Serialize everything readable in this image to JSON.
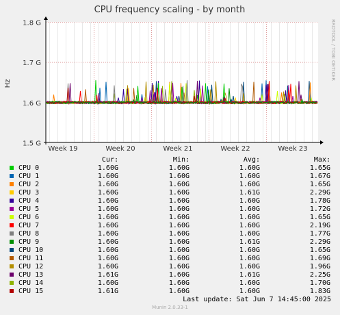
{
  "chart_data": {
    "type": "line",
    "title": "CPU frequency scaling - by month",
    "ylabel": "Hz",
    "watermark": "RRDTOOL / TOBI OETIKER",
    "ylim": [
      1.5,
      1.8
    ],
    "y_ticks": [
      "1.5 G",
      "1.6 G",
      "1.7 G",
      "1.8 G"
    ],
    "y_tick_values": [
      1.5,
      1.6,
      1.7,
      1.8
    ],
    "x_ticks": [
      "Week 19",
      "Week 20",
      "Week 21",
      "Week 22",
      "Week 23"
    ],
    "grid": true,
    "baseline": 1.6,
    "series": [
      {
        "name": "CPU 0",
        "color": "#00cc00",
        "cur": "1.60G",
        "min": "1.60G",
        "avg": "1.60G",
        "max": "1.65G"
      },
      {
        "name": "CPU 1",
        "color": "#0066b3",
        "cur": "1.60G",
        "min": "1.60G",
        "avg": "1.60G",
        "max": "1.67G"
      },
      {
        "name": "CPU 2",
        "color": "#ff8000",
        "cur": "1.60G",
        "min": "1.60G",
        "avg": "1.60G",
        "max": "1.65G"
      },
      {
        "name": "CPU 3",
        "color": "#ffcc00",
        "cur": "1.60G",
        "min": "1.60G",
        "avg": "1.61G",
        "max": "2.29G"
      },
      {
        "name": "CPU 4",
        "color": "#330099",
        "cur": "1.60G",
        "min": "1.60G",
        "avg": "1.60G",
        "max": "1.78G"
      },
      {
        "name": "CPU 5",
        "color": "#990099",
        "cur": "1.60G",
        "min": "1.60G",
        "avg": "1.60G",
        "max": "1.72G"
      },
      {
        "name": "CPU 6",
        "color": "#ccff00",
        "cur": "1.60G",
        "min": "1.60G",
        "avg": "1.60G",
        "max": "1.65G"
      },
      {
        "name": "CPU 7",
        "color": "#ff0000",
        "cur": "1.60G",
        "min": "1.60G",
        "avg": "1.60G",
        "max": "2.19G"
      },
      {
        "name": "CPU 8",
        "color": "#808080",
        "cur": "1.60G",
        "min": "1.60G",
        "avg": "1.60G",
        "max": "1.77G"
      },
      {
        "name": "CPU 9",
        "color": "#008f00",
        "cur": "1.60G",
        "min": "1.60G",
        "avg": "1.61G",
        "max": "2.29G"
      },
      {
        "name": "CPU 10",
        "color": "#00487d",
        "cur": "1.60G",
        "min": "1.60G",
        "avg": "1.60G",
        "max": "1.65G"
      },
      {
        "name": "CPU 11",
        "color": "#b35a00",
        "cur": "1.60G",
        "min": "1.60G",
        "avg": "1.60G",
        "max": "1.69G"
      },
      {
        "name": "CPU 12",
        "color": "#b38f00",
        "cur": "1.60G",
        "min": "1.60G",
        "avg": "1.60G",
        "max": "1.96G"
      },
      {
        "name": "CPU 13",
        "color": "#6b006b",
        "cur": "1.61G",
        "min": "1.60G",
        "avg": "1.61G",
        "max": "2.25G"
      },
      {
        "name": "CPU 14",
        "color": "#8fb300",
        "cur": "1.60G",
        "min": "1.60G",
        "avg": "1.60G",
        "max": "1.70G"
      },
      {
        "name": "CPU 15",
        "color": "#b30000",
        "cur": "1.61G",
        "min": "1.60G",
        "avg": "1.60G",
        "max": "1.83G"
      }
    ]
  },
  "legend_headers": {
    "cur": "Cur:",
    "min": "Min:",
    "avg": "Avg:",
    "max": "Max:"
  },
  "last_update": "Last update:  Sat Jun  7 14:45:00 2025",
  "footer": "Munin 2.0.33-1"
}
